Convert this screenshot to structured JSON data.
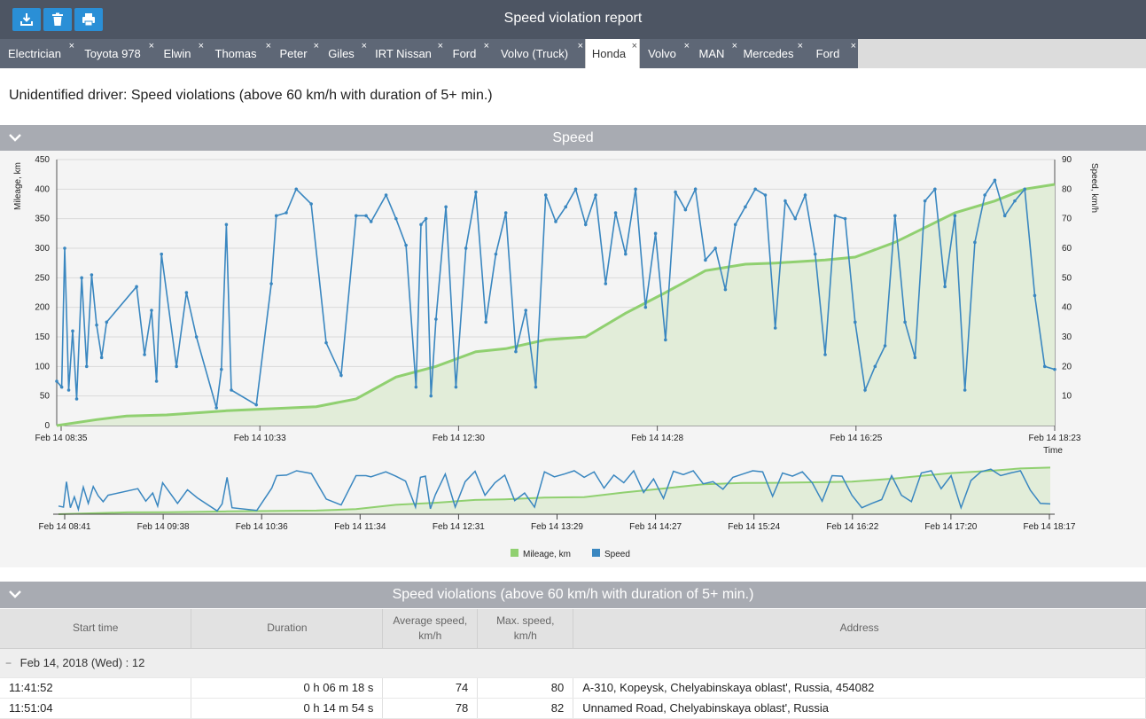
{
  "window": {
    "title": "Speed violation report"
  },
  "toolbar": {
    "export_icon": "download-icon",
    "delete_icon": "trash-icon",
    "print_icon": "printer-icon"
  },
  "tabs": [
    {
      "label": "Electrician"
    },
    {
      "label": "Toyota 978"
    },
    {
      "label": "Elwin"
    },
    {
      "label": "Thomas"
    },
    {
      "label": "Peter"
    },
    {
      "label": "Giles"
    },
    {
      "label": "IRT Nissan"
    },
    {
      "label": "Ford"
    },
    {
      "label": "Volvo (Truck)"
    },
    {
      "label": "Honda",
      "active": true
    },
    {
      "label": "Volvo"
    },
    {
      "label": "MAN"
    },
    {
      "label": "Mercedes"
    },
    {
      "label": "Ford"
    }
  ],
  "tab_close_glyph": "×",
  "report": {
    "heading": "Unidentified driver: Speed violations (above 60 km/h with duration of 5+ min.)"
  },
  "speed_section": {
    "title": "Speed"
  },
  "violations_section": {
    "title": "Speed violations (above 60 km/h with duration of 5+ min.)"
  },
  "chart_data": {
    "type": "line",
    "y_left_label": "Mileage, km",
    "y_right_label": "Speed, km/h",
    "x_label": "Time",
    "y_left_range": [
      0,
      450
    ],
    "y_left_ticks": [
      "0",
      "50",
      "100",
      "150",
      "200",
      "250",
      "300",
      "350",
      "400",
      "450"
    ],
    "y_right_range": [
      0,
      90
    ],
    "y_right_ticks": [
      "10",
      "20",
      "30",
      "40",
      "50",
      "60",
      "70",
      "80",
      "90"
    ],
    "x_ticks": [
      "Feb 14 08:35",
      "Feb 14 10:33",
      "Feb 14 12:30",
      "Feb 14 14:28",
      "Feb 14 16:25",
      "Feb 14 18:23"
    ],
    "navigator_ticks": [
      "Feb 14 08:41",
      "Feb 14 09:38",
      "Feb 14 10:36",
      "Feb 14 11:34",
      "Feb 14 12:31",
      "Feb 14 13:29",
      "Feb 14 14:27",
      "Feb 14 15:24",
      "Feb 14 16:22",
      "Feb 14 17:20",
      "Feb 14 18:17"
    ],
    "legend": [
      {
        "name": "Mileage, km",
        "color": "#90d070"
      },
      {
        "name": "Speed",
        "color": "#3a87c0"
      }
    ],
    "grid": true,
    "series": [
      {
        "name": "Mileage, km",
        "axis": "left",
        "t": [
          0,
          0.04,
          0.07,
          0.11,
          0.17,
          0.21,
          0.26,
          0.3,
          0.34,
          0.38,
          0.42,
          0.45,
          0.49,
          0.53,
          0.57,
          0.61,
          0.65,
          0.69,
          0.72,
          0.77,
          0.8,
          0.84,
          0.87,
          0.9,
          0.94,
          0.97,
          1.0
        ],
        "values": [
          0,
          10,
          16,
          18,
          25,
          28,
          32,
          45,
          82,
          100,
          125,
          130,
          145,
          150,
          190,
          225,
          262,
          273,
          275,
          280,
          285,
          310,
          335,
          360,
          380,
          400,
          408
        ]
      },
      {
        "name": "Speed",
        "axis": "right",
        "t": [
          0,
          0.005,
          0.008,
          0.012,
          0.016,
          0.02,
          0.025,
          0.03,
          0.035,
          0.04,
          0.045,
          0.05,
          0.08,
          0.088,
          0.095,
          0.1,
          0.105,
          0.12,
          0.13,
          0.14,
          0.16,
          0.165,
          0.17,
          0.175,
          0.2,
          0.215,
          0.22,
          0.23,
          0.24,
          0.255,
          0.27,
          0.285,
          0.3,
          0.31,
          0.315,
          0.33,
          0.34,
          0.35,
          0.36,
          0.365,
          0.37,
          0.375,
          0.38,
          0.39,
          0.4,
          0.41,
          0.42,
          0.43,
          0.44,
          0.45,
          0.46,
          0.47,
          0.48,
          0.49,
          0.5,
          0.51,
          0.52,
          0.53,
          0.54,
          0.55,
          0.56,
          0.57,
          0.58,
          0.59,
          0.6,
          0.61,
          0.62,
          0.63,
          0.64,
          0.65,
          0.66,
          0.67,
          0.68,
          0.69,
          0.7,
          0.71,
          0.72,
          0.73,
          0.74,
          0.75,
          0.76,
          0.77,
          0.78,
          0.79,
          0.8,
          0.81,
          0.82,
          0.83,
          0.84,
          0.85,
          0.86,
          0.87,
          0.88,
          0.89,
          0.9,
          0.91,
          0.92,
          0.93,
          0.94,
          0.95,
          0.96,
          0.97,
          0.98,
          0.99,
          1.0
        ],
        "values": [
          15,
          13,
          60,
          12,
          32,
          9,
          50,
          20,
          51,
          34,
          23,
          35,
          47,
          24,
          39,
          15,
          58,
          20,
          45,
          30,
          6,
          19,
          68,
          12,
          7,
          48,
          71,
          72,
          80,
          75,
          28,
          17,
          71,
          71,
          69,
          78,
          70,
          61,
          13,
          68,
          70,
          10,
          36,
          74,
          13,
          60,
          79,
          35,
          58,
          72,
          25,
          39,
          13,
          78,
          69,
          74,
          80,
          68,
          78,
          48,
          72,
          58,
          80,
          40,
          65,
          29,
          79,
          73,
          80,
          56,
          60,
          46,
          68,
          74,
          80,
          78,
          33,
          76,
          70,
          78,
          58,
          24,
          71,
          70,
          35,
          12,
          20,
          27,
          71,
          35,
          23,
          76,
          80,
          47,
          71,
          12,
          62,
          78,
          83,
          71,
          76,
          80,
          44,
          20,
          19
        ]
      }
    ]
  },
  "table": {
    "columns": [
      {
        "label": "Start time"
      },
      {
        "label": "Duration"
      },
      {
        "label": "Average speed,",
        "label2": "km/h"
      },
      {
        "label": "Max. speed,",
        "label2": "km/h"
      },
      {
        "label": "Address"
      }
    ],
    "group": {
      "toggle": "−",
      "label": "Feb 14, 2018 (Wed) : 12"
    },
    "rows": [
      {
        "start": "11:41:52",
        "duration": "0 h 06 m 18 s",
        "avg": "74",
        "max": "80",
        "address": "A-310, Kopeysk, Chelyabinskaya oblast', Russia, 454082"
      },
      {
        "start": "11:51:04",
        "duration": "0 h 14 m 54 s",
        "avg": "78",
        "max": "82",
        "address": "Unnamed Road, Chelyabinskaya oblast', Russia"
      }
    ]
  }
}
